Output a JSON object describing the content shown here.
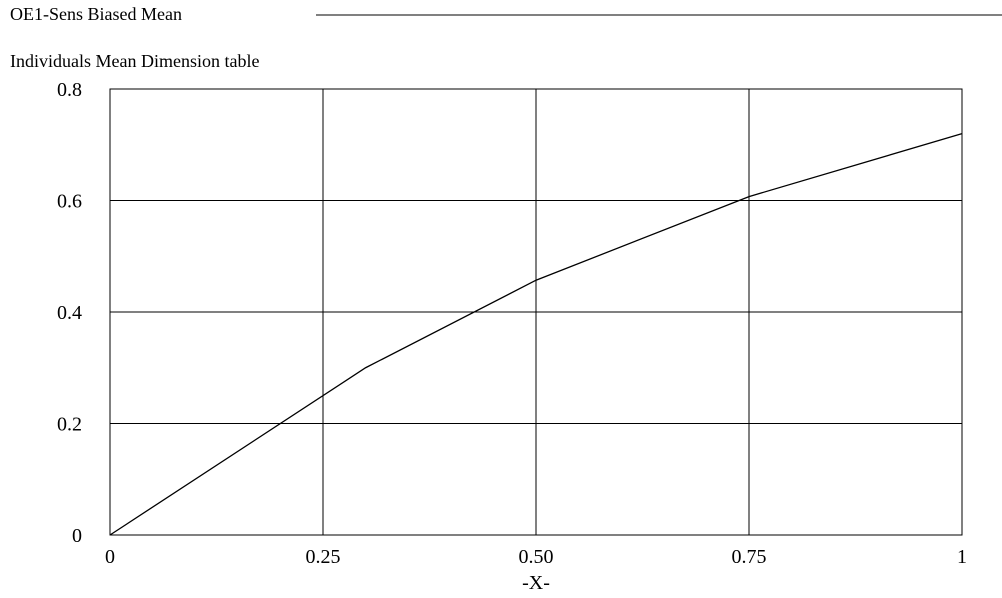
{
  "chart_data": {
    "type": "line",
    "title": "OE1-Sens Biased Mean",
    "subtitle": "Individuals Mean Dimension table",
    "xlabel": "-X-",
    "ylabel": "",
    "xlim": [
      0,
      1
    ],
    "ylim": [
      0,
      0.8
    ],
    "x_ticks": [
      0,
      0.25,
      0.5,
      0.75,
      1
    ],
    "x_tick_labels": [
      "0",
      "0.25",
      "0.50",
      "0.75",
      "1"
    ],
    "y_ticks": [
      0,
      0.2,
      0.4,
      0.6,
      0.8
    ],
    "y_tick_labels": [
      "0",
      "0.2",
      "0.4",
      "0.6",
      "0.8"
    ],
    "grid": true,
    "series": [
      {
        "x": [
          0,
          0.3,
          0.5,
          0.75,
          1
        ],
        "y": [
          0,
          0.3,
          0.457,
          0.607,
          0.72
        ]
      }
    ],
    "colors": {
      "line": "#000000",
      "grid": "#000000",
      "frame": "#000000"
    }
  }
}
